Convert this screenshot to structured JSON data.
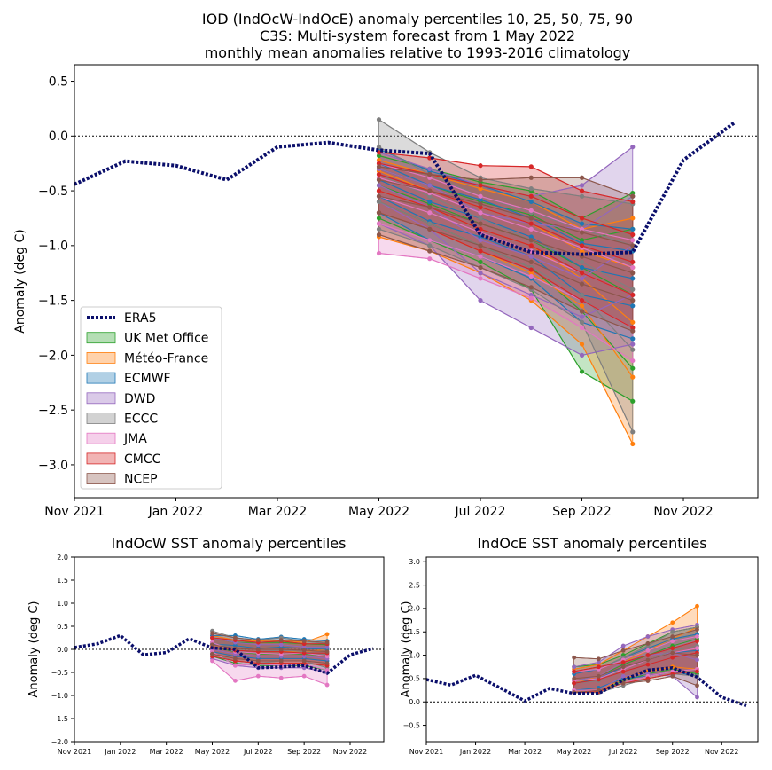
{
  "title_lines": [
    "IOD (IndOcW-IndOcE) anomaly percentiles 10, 25, 50, 75, 90",
    "C3S: Multi-system forecast from 1 May 2022",
    "monthly mean anomalies relative to 1993-2016 climatology"
  ],
  "colors": {
    "era5": "#0b0f6b",
    "UK Met Office": "#2ca02c",
    "Météo-France": "#ff7f0e",
    "ECMWF": "#1f77b4",
    "DWD": "#9467bd",
    "ECCC": "#7f7f7f",
    "JMA": "#e377c2",
    "CMCC": "#d62728",
    "NCEP": "#8c564b"
  },
  "legend": [
    "ERA5",
    "UK Met Office",
    "Météo-France",
    "ECMWF",
    "DWD",
    "ECCC",
    "JMA",
    "CMCC",
    "NCEP"
  ],
  "chart_data": [
    {
      "type": "area",
      "title": "IOD (IndOcW-IndOcE) anomaly percentiles 10, 25, 50, 75, 90",
      "xlabel": "",
      "ylabel": "Anomaly (deg C)",
      "ylim": [
        -3.3,
        0.65
      ],
      "xlim": [
        "2021-11-01",
        "2022-12-15"
      ],
      "xticks": [
        "Nov 2021",
        "Jan 2022",
        "Mar 2022",
        "May 2022",
        "Jul 2022",
        "Sep 2022",
        "Nov 2022"
      ],
      "yticks": [
        "0.5",
        "0.0",
        "−0.5",
        "−1.0",
        "−1.5",
        "−2.0",
        "−2.5",
        "−3.0"
      ],
      "legend_position": "lower-left",
      "era5": {
        "x": [
          "2021-11-01",
          "2021-12-01",
          "2022-01-01",
          "2022-02-01",
          "2022-03-01",
          "2022-04-01",
          "2022-05-01",
          "2022-06-01",
          "2022-07-01",
          "2022-08-01",
          "2022-09-01",
          "2022-10-01",
          "2022-11-01",
          "2022-12-01"
        ],
        "y": [
          -0.44,
          -0.23,
          -0.27,
          -0.4,
          -0.1,
          -0.06,
          -0.13,
          -0.16,
          -0.9,
          -1.06,
          -1.08,
          -1.06,
          -0.22,
          0.12
        ]
      },
      "forecast_months": [
        "2022-05",
        "2022-06",
        "2022-07",
        "2022-08",
        "2022-09",
        "2022-10"
      ],
      "series": [
        {
          "name": "UK Met Office",
          "p10": [
            -0.75,
            -0.95,
            -1.15,
            -1.4,
            -2.15,
            -2.42
          ],
          "p25": [
            -0.6,
            -0.8,
            -1.0,
            -1.2,
            -1.6,
            -2.12
          ],
          "p50": [
            -0.45,
            -0.62,
            -0.8,
            -0.95,
            -1.2,
            -1.45
          ],
          "p75": [
            -0.3,
            -0.45,
            -0.6,
            -0.72,
            -0.95,
            -0.85
          ],
          "p90": [
            -0.18,
            -0.3,
            -0.42,
            -0.5,
            -0.75,
            -0.52
          ]
        },
        {
          "name": "Météo-France",
          "p10": [
            -0.92,
            -1.05,
            -1.25,
            -1.5,
            -1.9,
            -2.81
          ],
          "p25": [
            -0.7,
            -0.85,
            -1.05,
            -1.25,
            -1.55,
            -2.2
          ],
          "p50": [
            -0.5,
            -0.65,
            -0.85,
            -1.0,
            -1.3,
            -1.7
          ],
          "p75": [
            -0.32,
            -0.5,
            -0.65,
            -0.8,
            -1.05,
            -1.2
          ],
          "p90": [
            -0.22,
            -0.35,
            -0.48,
            -0.6,
            -0.85,
            -0.75
          ]
        },
        {
          "name": "ECMWF",
          "p10": [
            -0.7,
            -0.95,
            -1.1,
            -1.3,
            -1.7,
            -1.85
          ],
          "p25": [
            -0.55,
            -0.78,
            -0.92,
            -1.1,
            -1.45,
            -1.55
          ],
          "p50": [
            -0.4,
            -0.6,
            -0.75,
            -0.92,
            -1.2,
            -1.3
          ],
          "p75": [
            -0.25,
            -0.45,
            -0.58,
            -0.75,
            -0.98,
            -1.05
          ],
          "p90": [
            -0.12,
            -0.32,
            -0.45,
            -0.6,
            -0.8,
            -0.85
          ]
        },
        {
          "name": "DWD",
          "p10": [
            -0.8,
            -1.0,
            -1.5,
            -1.75,
            -2.0,
            -1.9
          ],
          "p25": [
            -0.6,
            -0.85,
            -1.25,
            -1.45,
            -1.65,
            -1.45
          ],
          "p50": [
            -0.45,
            -0.65,
            -0.95,
            -1.1,
            -1.3,
            -1.0
          ],
          "p75": [
            -0.3,
            -0.45,
            -0.7,
            -0.8,
            -0.85,
            -0.55
          ],
          "p90": [
            -0.15,
            -0.3,
            -0.45,
            -0.55,
            -0.45,
            -0.1
          ]
        },
        {
          "name": "ECCC",
          "p10": [
            -0.85,
            -1.0,
            -1.2,
            -1.4,
            -1.7,
            -2.7
          ],
          "p25": [
            -0.6,
            -0.8,
            -1.0,
            -1.2,
            -1.45,
            -1.95
          ],
          "p50": [
            -0.35,
            -0.55,
            -0.75,
            -0.95,
            -1.15,
            -1.4
          ],
          "p75": [
            -0.1,
            -0.35,
            -0.55,
            -0.7,
            -0.85,
            -1.0
          ],
          "p90": [
            0.15,
            -0.15,
            -0.38,
            -0.48,
            -0.55,
            -0.62
          ]
        },
        {
          "name": "JMA",
          "p10": [
            -1.07,
            -1.12,
            -1.3,
            -1.48,
            -1.75,
            -2.05
          ],
          "p25": [
            -0.8,
            -0.95,
            -1.1,
            -1.28,
            -1.5,
            -1.75
          ],
          "p50": [
            -0.55,
            -0.7,
            -0.88,
            -1.05,
            -1.25,
            -1.45
          ],
          "p75": [
            -0.38,
            -0.52,
            -0.7,
            -0.85,
            -1.02,
            -1.2
          ],
          "p90": [
            -0.25,
            -0.38,
            -0.55,
            -0.68,
            -0.85,
            -0.95
          ]
        },
        {
          "name": "CMCC",
          "p10": [
            -0.7,
            -0.85,
            -1.05,
            -1.22,
            -1.5,
            -1.75
          ],
          "p25": [
            -0.5,
            -0.65,
            -0.85,
            -1.0,
            -1.25,
            -1.45
          ],
          "p50": [
            -0.35,
            -0.5,
            -0.65,
            -0.8,
            -1.0,
            -1.15
          ],
          "p75": [
            -0.25,
            -0.35,
            -0.45,
            -0.55,
            -0.75,
            -0.9
          ],
          "p90": [
            -0.15,
            -0.2,
            -0.27,
            -0.28,
            -0.5,
            -0.6
          ]
        },
        {
          "name": "NCEP",
          "p10": [
            -0.9,
            -1.05,
            -1.2,
            -1.38,
            -1.6,
            -1.78
          ],
          "p25": [
            -0.7,
            -0.85,
            -1.0,
            -1.15,
            -1.35,
            -1.5
          ],
          "p50": [
            -0.55,
            -0.65,
            -0.8,
            -0.95,
            -1.1,
            -1.25
          ],
          "p75": [
            -0.4,
            -0.5,
            -0.62,
            -0.75,
            -0.88,
            -1.0
          ],
          "p90": [
            -0.28,
            -0.35,
            -0.4,
            -0.38,
            -0.38,
            -0.55
          ]
        }
      ]
    },
    {
      "type": "area",
      "title": "IndOcW SST anomaly percentiles",
      "ylabel": "Anomaly (deg C)",
      "ylim": [
        -2.0,
        2.0
      ],
      "xlim": [
        "2021-11-01",
        "2022-12-15"
      ],
      "xticks": [
        "Nov 2021",
        "Jan 2022",
        "Mar 2022",
        "May 2022",
        "Jul 2022",
        "Sep 2022",
        "Nov 2022"
      ],
      "yticks": [
        "2.0",
        "1.5",
        "1.0",
        "0.5",
        "0.0",
        "−0.5",
        "−1.0",
        "−1.5",
        "−2.0"
      ],
      "era5": {
        "x": [
          "2021-11-01",
          "2021-12-01",
          "2022-01-01",
          "2022-02-01",
          "2022-03-01",
          "2022-04-01",
          "2022-05-01",
          "2022-06-01",
          "2022-07-01",
          "2022-08-01",
          "2022-09-01",
          "2022-10-01",
          "2022-11-01",
          "2022-12-01"
        ],
        "y": [
          0.04,
          0.12,
          0.3,
          -0.12,
          -0.07,
          0.23,
          0.03,
          0.0,
          -0.4,
          -0.38,
          -0.35,
          -0.52,
          -0.12,
          0.02
        ]
      },
      "forecast_months": [
        "2022-05",
        "2022-06",
        "2022-07",
        "2022-08",
        "2022-09",
        "2022-10"
      ],
      "series": [
        {
          "name": "UK Met Office",
          "p10": [
            -0.15,
            -0.3,
            -0.35,
            -0.35,
            -0.35,
            -0.45
          ],
          "p50": [
            0.05,
            -0.05,
            -0.1,
            -0.1,
            -0.1,
            -0.15
          ],
          "p90": [
            0.25,
            0.15,
            0.15,
            0.15,
            0.12,
            0.1
          ]
        },
        {
          "name": "Météo-France",
          "p10": [
            -0.1,
            -0.25,
            -0.3,
            -0.3,
            -0.3,
            -0.35
          ],
          "p50": [
            0.1,
            0.0,
            -0.05,
            -0.05,
            -0.05,
            0.0
          ],
          "p90": [
            0.3,
            0.2,
            0.18,
            0.2,
            0.15,
            0.33
          ]
        },
        {
          "name": "ECMWF",
          "p10": [
            -0.05,
            -0.15,
            -0.2,
            -0.2,
            -0.2,
            -0.25
          ],
          "p50": [
            0.12,
            0.08,
            0.02,
            0.05,
            0.02,
            0.0
          ],
          "p90": [
            0.3,
            0.3,
            0.22,
            0.27,
            0.22,
            0.18
          ]
        },
        {
          "name": "DWD",
          "p10": [
            -0.2,
            -0.35,
            -0.4,
            -0.4,
            -0.4,
            -0.5
          ],
          "p50": [
            0.0,
            -0.1,
            -0.15,
            -0.15,
            -0.15,
            -0.2
          ],
          "p90": [
            0.25,
            0.15,
            0.1,
            0.1,
            0.05,
            0.05
          ]
        },
        {
          "name": "ECCC",
          "p10": [
            -0.1,
            -0.25,
            -0.3,
            -0.25,
            -0.25,
            -0.4
          ],
          "p50": [
            0.15,
            0.0,
            -0.05,
            -0.02,
            -0.05,
            -0.12
          ],
          "p90": [
            0.4,
            0.25,
            0.2,
            0.25,
            0.18,
            0.12
          ]
        },
        {
          "name": "JMA",
          "p10": [
            -0.25,
            -0.68,
            -0.58,
            -0.62,
            -0.58,
            -0.77
          ],
          "p50": [
            -0.05,
            -0.35,
            -0.32,
            -0.35,
            -0.32,
            -0.45
          ],
          "p90": [
            0.15,
            -0.05,
            -0.08,
            -0.1,
            -0.08,
            -0.15
          ]
        },
        {
          "name": "CMCC",
          "p10": [
            -0.15,
            -0.25,
            -0.3,
            -0.3,
            -0.3,
            -0.35
          ],
          "p50": [
            0.05,
            -0.02,
            -0.05,
            -0.05,
            -0.08,
            -0.08
          ],
          "p90": [
            0.25,
            0.2,
            0.15,
            0.18,
            0.12,
            0.12
          ]
        },
        {
          "name": "NCEP",
          "p10": [
            -0.1,
            -0.2,
            -0.25,
            -0.25,
            -0.25,
            -0.3
          ],
          "p50": [
            0.1,
            0.02,
            0.0,
            0.0,
            -0.02,
            -0.05
          ],
          "p90": [
            0.35,
            0.25,
            0.2,
            0.2,
            0.18,
            0.15
          ]
        }
      ]
    },
    {
      "type": "area",
      "title": "IndOcE SST anomaly percentiles",
      "ylabel": "Anomaly (deg C)",
      "ylim": [
        -0.85,
        3.1
      ],
      "xlim": [
        "2021-11-01",
        "2022-12-15"
      ],
      "xticks": [
        "Nov 2021",
        "Jan 2022",
        "Mar 2022",
        "May 2022",
        "Jul 2022",
        "Sep 2022",
        "Nov 2022"
      ],
      "yticks": [
        "3.0",
        "2.5",
        "2.0",
        "1.5",
        "1.0",
        "0.5",
        "0.0",
        "−0.5"
      ],
      "era5": {
        "x": [
          "2021-11-01",
          "2021-12-01",
          "2022-01-01",
          "2022-02-01",
          "2022-03-01",
          "2022-04-01",
          "2022-05-01",
          "2022-06-01",
          "2022-07-01",
          "2022-08-01",
          "2022-09-01",
          "2022-10-01",
          "2022-11-01",
          "2022-12-01"
        ],
        "y": [
          0.48,
          0.36,
          0.57,
          0.3,
          0.02,
          0.29,
          0.18,
          0.18,
          0.47,
          0.68,
          0.73,
          0.53,
          0.1,
          -0.08
        ]
      },
      "forecast_months": [
        "2022-05",
        "2022-06",
        "2022-07",
        "2022-08",
        "2022-09",
        "2022-10"
      ],
      "series": [
        {
          "name": "UK Met Office",
          "p10": [
            0.2,
            0.22,
            0.45,
            0.6,
            0.7,
            0.6
          ],
          "p50": [
            0.45,
            0.55,
            0.8,
            1.0,
            1.2,
            1.35
          ],
          "p90": [
            0.75,
            0.8,
            1.0,
            1.25,
            1.5,
            1.6
          ]
        },
        {
          "name": "Météo-France",
          "p10": [
            0.2,
            0.25,
            0.5,
            0.65,
            0.75,
            0.7
          ],
          "p50": [
            0.4,
            0.55,
            0.85,
            1.1,
            1.35,
            1.6
          ],
          "p90": [
            0.7,
            0.8,
            1.1,
            1.4,
            1.7,
            2.05
          ]
        },
        {
          "name": "ECMWF",
          "p10": [
            0.25,
            0.3,
            0.5,
            0.55,
            0.65,
            0.55
          ],
          "p50": [
            0.4,
            0.5,
            0.75,
            0.9,
            1.05,
            1.1
          ],
          "p90": [
            0.6,
            0.7,
            0.95,
            1.15,
            1.35,
            1.45
          ]
        },
        {
          "name": "DWD",
          "p10": [
            0.2,
            0.25,
            0.55,
            0.6,
            0.55,
            0.1
          ],
          "p50": [
            0.45,
            0.55,
            0.85,
            1.0,
            1.05,
            0.9
          ],
          "p90": [
            0.75,
            0.85,
            1.2,
            1.4,
            1.55,
            1.65
          ]
        },
        {
          "name": "ECCC",
          "p10": [
            0.2,
            0.2,
            0.35,
            0.5,
            0.6,
            0.55
          ],
          "p50": [
            0.4,
            0.45,
            0.7,
            0.9,
            1.1,
            1.2
          ],
          "p90": [
            0.65,
            0.7,
            0.95,
            1.2,
            1.5,
            1.6
          ]
        },
        {
          "name": "JMA",
          "p10": [
            0.25,
            0.25,
            0.4,
            0.55,
            0.65,
            0.7
          ],
          "p50": [
            0.45,
            0.5,
            0.7,
            0.9,
            1.05,
            1.15
          ],
          "p90": [
            0.65,
            0.7,
            0.9,
            1.1,
            1.3,
            1.4
          ]
        },
        {
          "name": "CMCC",
          "p10": [
            0.2,
            0.22,
            0.4,
            0.5,
            0.6,
            0.65
          ],
          "p50": [
            0.4,
            0.48,
            0.65,
            0.8,
            0.95,
            1.05
          ],
          "p90": [
            0.65,
            0.75,
            0.85,
            1.0,
            1.15,
            1.3
          ]
        },
        {
          "name": "NCEP",
          "p10": [
            0.2,
            0.25,
            0.4,
            0.45,
            0.55,
            0.35
          ],
          "p50": [
            0.5,
            0.55,
            0.75,
            0.9,
            1.05,
            1.0
          ],
          "p90": [
            0.95,
            0.92,
            1.1,
            1.25,
            1.4,
            1.55
          ]
        }
      ]
    }
  ]
}
